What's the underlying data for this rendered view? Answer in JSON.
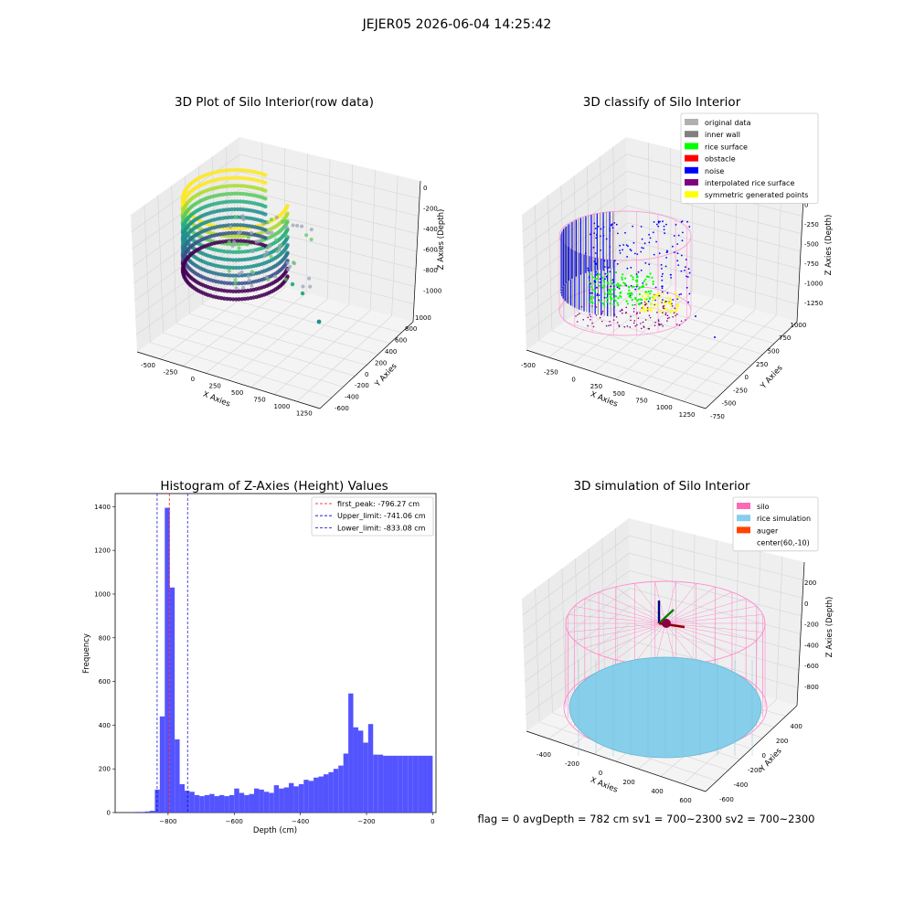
{
  "suptitle": "JEJER05 2026-06-04 14:25:42",
  "footer": "flag = 0     avgDepth = 782 cm  sv1 = 700~2300  sv2 = 700~2300",
  "chart_data": [
    {
      "type": "scatter",
      "panel": "3d",
      "title": "3D Plot of Silo Interior(row data)",
      "xlabel": "X Axies",
      "ylabel": "Y Axies",
      "zlabel": "Z Axies (Depth)",
      "x_ticks": [
        "-500",
        "-250",
        "0",
        "250",
        "500",
        "750",
        "1000",
        "1250"
      ],
      "y_ticks": [
        "-600",
        "-400",
        "-200",
        "0",
        "200",
        "400",
        "600",
        "800",
        "1000"
      ],
      "z_ticks": [
        "0",
        "-200",
        "-400",
        "-600",
        "-800",
        "-1000"
      ],
      "colormap": "viridis"
    },
    {
      "type": "scatter",
      "panel": "3d",
      "title": "3D classify of Silo Interior",
      "xlabel": "X Axies",
      "ylabel": "Y Axies",
      "zlabel": "Z Axies (Depth)",
      "x_ticks": [
        "-500",
        "-250",
        "0",
        "250",
        "500",
        "750",
        "1000",
        "1250"
      ],
      "y_ticks": [
        "-750",
        "-500",
        "-250",
        "0",
        "250",
        "500",
        "750",
        "1000"
      ],
      "z_ticks": [
        "250",
        "0",
        "-250",
        "-500",
        "-750",
        "-1000",
        "-1250"
      ],
      "legend_position": "top-right",
      "legend": [
        {
          "label": "original data",
          "color": "#b0b0b0"
        },
        {
          "label": "inner wall",
          "color": "#808080"
        },
        {
          "label": "rice surface",
          "color": "#00ff00"
        },
        {
          "label": "obstacle",
          "color": "#ff0000"
        },
        {
          "label": "noise",
          "color": "#0000ff"
        },
        {
          "label": "interpolated rice surface",
          "color": "#800080"
        },
        {
          "label": "symmetric generated points",
          "color": "#ffff00"
        }
      ]
    },
    {
      "type": "bar",
      "panel": "histogram",
      "title": "Histogram of Z-Axies (Height) Values",
      "xlabel": "Depth (cm)",
      "ylabel": "Frequency",
      "xlim": [
        -960,
        10
      ],
      "ylim": [
        0,
        1460
      ],
      "x_ticks": [
        -800,
        -600,
        -400,
        -200,
        0
      ],
      "y_ticks": [
        0,
        200,
        400,
        600,
        800,
        1000,
        1200,
        1400
      ],
      "bar_color": "#4b4bff",
      "bin_edges": [
        -900,
        -885,
        -870,
        -855,
        -840,
        -825,
        -810,
        -795,
        -780,
        -765,
        -750,
        -735,
        -720,
        -705,
        -690,
        -675,
        -660,
        -645,
        -630,
        -615,
        -600,
        -585,
        -570,
        -555,
        -540,
        -525,
        -510,
        -495,
        -480,
        -465,
        -450,
        -435,
        -420,
        -405,
        -390,
        -375,
        -360,
        -345,
        -330,
        -315,
        -300,
        -285,
        -270,
        -255,
        -240,
        -225,
        -210,
        -195,
        -180,
        -165,
        -150,
        -135,
        -120,
        -105,
        -90,
        -75,
        -60,
        -45,
        -30,
        -15,
        0
      ],
      "values": [
        3,
        3,
        5,
        8,
        105,
        440,
        1395,
        1030,
        335,
        130,
        100,
        95,
        80,
        75,
        80,
        85,
        75,
        80,
        75,
        80,
        110,
        90,
        80,
        85,
        110,
        105,
        95,
        90,
        125,
        110,
        115,
        135,
        120,
        130,
        150,
        145,
        160,
        165,
        175,
        185,
        200,
        215,
        270,
        545,
        390,
        375,
        320,
        405,
        265,
        265,
        260,
        260,
        260,
        260,
        260,
        260,
        260,
        260,
        260,
        260
      ],
      "vlines": [
        {
          "label": "first_peak: -796.27 cm",
          "x": -796.27,
          "color": "#ff0000"
        },
        {
          "label": "Upper_limit: -741.06 cm",
          "x": -741.06,
          "color": "#0000cc"
        },
        {
          "label": "Lower_limit: -833.08 cm",
          "x": -833.08,
          "color": "#0000cc"
        }
      ],
      "legend_position": "top-right"
    },
    {
      "type": "scatter",
      "panel": "3d",
      "title": "3D simulation of Silo Interior",
      "xlabel": "X Axies",
      "ylabel": "Y Axies",
      "zlabel": "Z Axies (Depth)",
      "x_ticks": [
        "-400",
        "-200",
        "0",
        "200",
        "400",
        "600"
      ],
      "y_ticks": [
        "-600",
        "-400",
        "-200",
        "0",
        "200",
        "400"
      ],
      "z_ticks": [
        "200",
        "0",
        "-200",
        "-400",
        "-600",
        "-800"
      ],
      "legend_position": "top-right",
      "legend": [
        {
          "label": "silo",
          "color": "#ff69b4"
        },
        {
          "label": "rice simulation",
          "color": "#87ceeb"
        },
        {
          "label": "auger",
          "color": "#ff4500"
        },
        {
          "label": "center(60,-10)",
          "color": "none"
        }
      ]
    }
  ]
}
